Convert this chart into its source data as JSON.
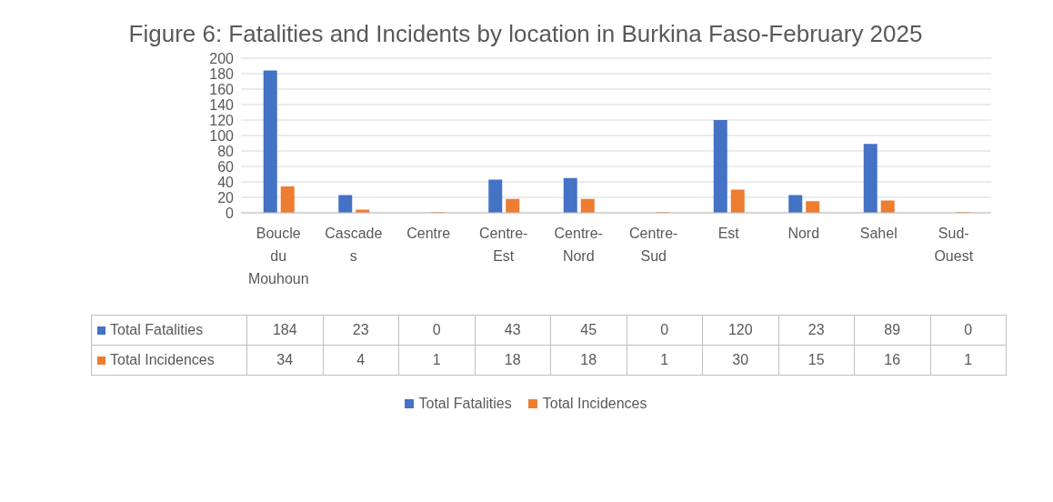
{
  "chart_data": {
    "type": "bar",
    "title": "Figure 6: Fatalities and Incidents by location in Burkina Faso-February 2025",
    "categories": [
      "Boucle du Mouhoun",
      "Cascades",
      "Centre",
      "Centre-Est",
      "Centre-Nord",
      "Centre-Sud",
      "Est",
      "Nord",
      "Sahel",
      "Sud-Ouest"
    ],
    "series": [
      {
        "name": "Total Fatalities",
        "color": "#4472c4",
        "values": [
          184,
          23,
          0,
          43,
          45,
          0,
          120,
          23,
          89,
          0
        ]
      },
      {
        "name": "Total Incidences",
        "color": "#ed7d31",
        "values": [
          34,
          4,
          1,
          18,
          18,
          1,
          30,
          15,
          16,
          1
        ]
      }
    ],
    "ylim": [
      0,
      200
    ],
    "yticks": [
      0,
      20,
      40,
      60,
      80,
      100,
      120,
      140,
      160,
      180,
      200
    ],
    "grid": "y",
    "legend": "bottom",
    "data_labels": true
  }
}
